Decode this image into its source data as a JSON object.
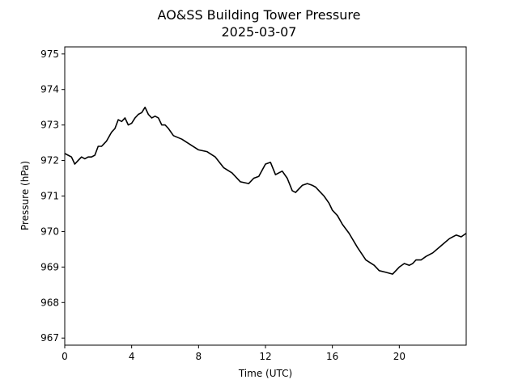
{
  "chart_data": {
    "type": "line",
    "title": "AO&SS Building Tower Pressure",
    "subtitle": "2025-03-07",
    "xlabel": "Time (UTC)",
    "ylabel": "Pressure (hPa)",
    "xlim": [
      0,
      24
    ],
    "ylim": [
      966.8,
      975.2
    ],
    "x_ticks": [
      0,
      4,
      8,
      12,
      16,
      20
    ],
    "x_tick_labels": [
      "0",
      "4",
      "8",
      "12",
      "16",
      "20"
    ],
    "y_ticks": [
      967,
      968,
      969,
      970,
      971,
      972,
      973,
      974,
      975
    ],
    "y_tick_labels": [
      "967",
      "968",
      "969",
      "970",
      "971",
      "972",
      "973",
      "974",
      "975"
    ],
    "grid": false,
    "line_color": "#000000",
    "series": [
      {
        "x": [
          0,
          0.2,
          0.4,
          0.6,
          0.8,
          1.0,
          1.2,
          1.4,
          1.6,
          1.8,
          2.0,
          2.2,
          2.5,
          2.8,
          3.0,
          3.2,
          3.4,
          3.6,
          3.8,
          4.0,
          4.2,
          4.4,
          4.6,
          4.8,
          5.0,
          5.2,
          5.4,
          5.6,
          5.8,
          6.0,
          6.2,
          6.5,
          7.0,
          7.5,
          8.0,
          8.5,
          9.0,
          9.5,
          10.0,
          10.5,
          11.0,
          11.3,
          11.6,
          12.0,
          12.3,
          12.6,
          13.0,
          13.3,
          13.6,
          13.8,
          14.0,
          14.2,
          14.5,
          14.8,
          15.0,
          15.2,
          15.5,
          15.8,
          16.0,
          16.3,
          16.6,
          17.0,
          17.5,
          18.0,
          18.5,
          18.8,
          19.2,
          19.6,
          20.0,
          20.3,
          20.6,
          20.8,
          21.0,
          21.3,
          21.6,
          22.0,
          22.5,
          23.0,
          23.4,
          23.7,
          24.0
        ],
        "y": [
          972.2,
          972.15,
          972.1,
          971.9,
          972.0,
          972.1,
          972.05,
          972.1,
          972.1,
          972.15,
          972.4,
          972.4,
          972.55,
          972.8,
          972.9,
          973.15,
          973.1,
          973.2,
          973.0,
          973.05,
          973.2,
          973.3,
          973.35,
          973.5,
          973.3,
          973.2,
          973.25,
          973.2,
          973.0,
          973.0,
          972.9,
          972.7,
          972.6,
          972.45,
          972.3,
          972.25,
          972.1,
          971.8,
          971.65,
          971.4,
          971.35,
          971.5,
          971.55,
          971.9,
          971.95,
          971.6,
          971.7,
          971.5,
          971.15,
          971.1,
          971.2,
          971.3,
          971.35,
          971.3,
          971.25,
          971.15,
          971.0,
          970.8,
          970.6,
          970.45,
          970.2,
          969.95,
          969.55,
          969.2,
          969.05,
          968.9,
          968.85,
          968.8,
          969.0,
          969.1,
          969.05,
          969.1,
          969.2,
          969.2,
          969.3,
          969.4,
          969.6,
          969.8,
          969.9,
          969.85,
          969.95
        ],
        "color": "#000000"
      }
    ]
  }
}
